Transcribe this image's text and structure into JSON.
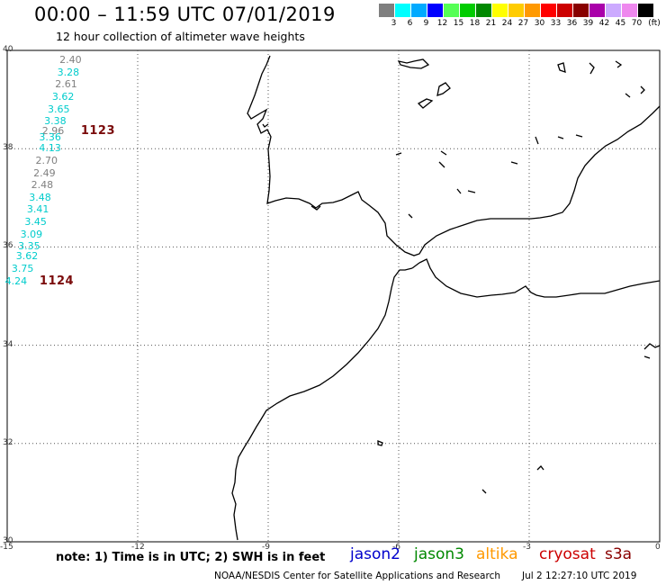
{
  "header": {
    "title": "00:00 – 11:59 UTC 07/01/2019",
    "subtitle": "12 hour collection of altimeter wave heights"
  },
  "color_scale": {
    "unit_label": "(ft)",
    "entries": [
      {
        "label": "3",
        "color": "#7f7f7f"
      },
      {
        "label": "6",
        "color": "#00ffff"
      },
      {
        "label": "9",
        "color": "#00aaff"
      },
      {
        "label": "12",
        "color": "#0000ff"
      },
      {
        "label": "15",
        "color": "#55ff55"
      },
      {
        "label": "18",
        "color": "#00cc00"
      },
      {
        "label": "21",
        "color": "#008800"
      },
      {
        "label": "24",
        "color": "#ffff00"
      },
      {
        "label": "27",
        "color": "#ffcc00"
      },
      {
        "label": "30",
        "color": "#ff9900"
      },
      {
        "label": "33",
        "color": "#ff0000"
      },
      {
        "label": "36",
        "color": "#cc0000"
      },
      {
        "label": "39",
        "color": "#880000"
      },
      {
        "label": "42",
        "color": "#aa00aa"
      },
      {
        "label": "45",
        "color": "#ccaaff"
      },
      {
        "label": "70",
        "color": "#ee88ee"
      },
      {
        "label": "",
        "color": "#000000"
      }
    ]
  },
  "axes": {
    "lat_labels": [
      "40",
      "38",
      "36",
      "34",
      "32",
      "30"
    ],
    "lon_labels": [
      "-15",
      "-12",
      "-9",
      "-6",
      "-3",
      "0"
    ]
  },
  "observations": [
    {
      "value": "2.40",
      "color": "#808080",
      "lon": -13.55,
      "lat": 39.8
    },
    {
      "value": "3.28",
      "color": "#00cccc",
      "lon": -13.6,
      "lat": 39.55
    },
    {
      "value": "2.61",
      "color": "#808080",
      "lon": -13.65,
      "lat": 39.3
    },
    {
      "value": "3.62",
      "color": "#00cccc",
      "lon": -13.72,
      "lat": 39.05
    },
    {
      "value": "3.65",
      "color": "#00cccc",
      "lon": -13.82,
      "lat": 38.8
    },
    {
      "value": "3.38",
      "color": "#00cccc",
      "lon": -13.9,
      "lat": 38.55
    },
    {
      "value": "2.96",
      "color": "#808080",
      "lon": -13.95,
      "lat": 38.35
    },
    {
      "value": "3.36",
      "color": "#00cccc",
      "lon": -14.02,
      "lat": 38.23
    },
    {
      "value": "4.13",
      "color": "#00cccc",
      "lon": -14.02,
      "lat": 38.0
    },
    {
      "value": "2.70",
      "color": "#808080",
      "lon": -14.1,
      "lat": 37.75
    },
    {
      "value": "2.49",
      "color": "#808080",
      "lon": -14.15,
      "lat": 37.5
    },
    {
      "value": "2.48",
      "color": "#808080",
      "lon": -14.2,
      "lat": 37.25
    },
    {
      "value": "3.48",
      "color": "#00cccc",
      "lon": -14.25,
      "lat": 37.0
    },
    {
      "value": "3.41",
      "color": "#00cccc",
      "lon": -14.3,
      "lat": 36.75
    },
    {
      "value": "3.45",
      "color": "#00cccc",
      "lon": -14.35,
      "lat": 36.5
    },
    {
      "value": "3.09",
      "color": "#00cccc",
      "lon": -14.45,
      "lat": 36.25
    },
    {
      "value": "3.35",
      "color": "#00cccc",
      "lon": -14.5,
      "lat": 36.0
    },
    {
      "value": "3.62",
      "color": "#00cccc",
      "lon": -14.55,
      "lat": 35.8
    },
    {
      "value": "3.75",
      "color": "#00cccc",
      "lon": -14.65,
      "lat": 35.55
    },
    {
      "value": "4.24",
      "color": "#00cccc",
      "lon": -14.8,
      "lat": 35.3
    }
  ],
  "passes": [
    {
      "id": "1123",
      "lon": -13.1,
      "lat": 38.35
    },
    {
      "id": "1124",
      "lon": -14.05,
      "lat": 35.3
    }
  ],
  "note": "note: 1) Time is in UTC; 2) SWH is in feet",
  "missions": [
    {
      "name": "jason2",
      "color": "#0000cc"
    },
    {
      "name": "jason3",
      "color": "#008800"
    },
    {
      "name": "altika",
      "color": "#ff9900"
    },
    {
      "name": "cryosat",
      "color": "#cc0000"
    },
    {
      "name": "s3a",
      "color": "#880000"
    }
  ],
  "footer": "NOAA/NESDIS Center for Satellite Applications and Research",
  "generated": "Jul  2 12:27:10 UTC 2019"
}
